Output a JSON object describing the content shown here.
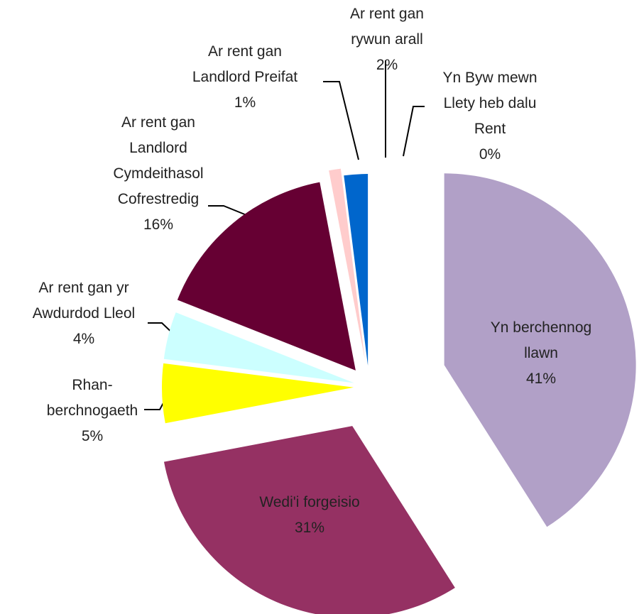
{
  "chart_data": {
    "type": "pie",
    "categories": [
      "Yn Byw mewn Llety heb dalu Rent",
      "Yn berchennog llawn",
      "Wedi'i forgeisio",
      "Rhan-berchnogaeth",
      "Ar rent gan yr Awdurdod Lleol",
      "Ar rent gan Landlord Cymdeithasol Cofrestredig",
      "Ar rent gan Landlord Preifat",
      "Ar rent gan rywun arall"
    ],
    "values": [
      0,
      41,
      31,
      5,
      4,
      16,
      1,
      2
    ],
    "value_labels": [
      "0%",
      "41%",
      "31%",
      "5%",
      "4%",
      "16%",
      "1%",
      "2%"
    ],
    "colors": [
      "#ff99cc",
      "#b1a0c7",
      "#953163",
      "#ffff00",
      "#ccffff",
      "#660033",
      "#ffcccc",
      "#0066cc"
    ]
  }
}
